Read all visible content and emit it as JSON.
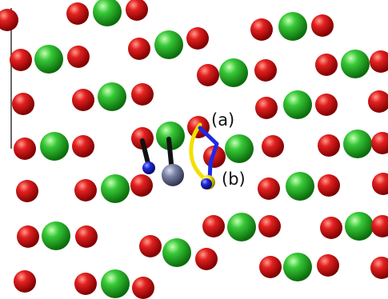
{
  "labels": {
    "a": "(a)",
    "b": "(b)"
  },
  "colors": {
    "oxygen": "#d41414",
    "green_atom": "#2fbf2f",
    "gray_atom": "#6b7394",
    "blue_atom": "#1a1fd0",
    "path_a": "#f2e000",
    "path_b": "#1e28e6",
    "stick": "#111111"
  },
  "legend": []
}
